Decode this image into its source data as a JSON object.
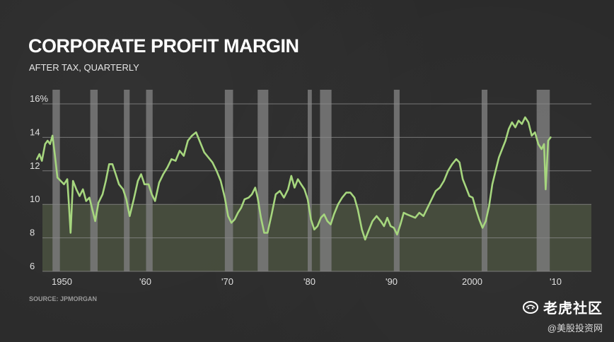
{
  "header": {
    "title": "CORPORATE PROFIT MARGIN",
    "subtitle": "AFTER TAX, QUARTERLY"
  },
  "footer": {
    "source": "SOURCE: JPMORGAN"
  },
  "watermark": {
    "brand": "老虎社区",
    "handle": "@美股投资网"
  },
  "colors": {
    "line": "#a6d67e",
    "recession": "#7a7a7a",
    "shaded_band": "#4a5140",
    "grid": "#8a8a8a",
    "background": "#2a2a2a"
  },
  "chart_data": {
    "type": "line",
    "title": "CORPORATE PROFIT MARGIN",
    "subtitle": "AFTER TAX, QUARTERLY",
    "xlabel": "",
    "ylabel": "",
    "xlim": [
      1947,
      2014
    ],
    "ylim": [
      6,
      16
    ],
    "yticks": [
      6,
      8,
      10,
      12,
      14,
      16
    ],
    "ytick_labels": [
      "6",
      "8",
      "10",
      "12",
      "14",
      "16%"
    ],
    "xticks": [
      1950,
      1960,
      1970,
      1980,
      1990,
      2000,
      2010
    ],
    "xtick_labels": [
      "1950",
      "'60",
      "'70",
      "'80",
      "'90",
      "2000",
      "'10"
    ],
    "grid": true,
    "shaded_band": [
      6,
      10
    ],
    "recessions": [
      [
        1948.9,
        1949.8
      ],
      [
        1953.5,
        1954.4
      ],
      [
        1957.6,
        1958.3
      ],
      [
        1960.3,
        1961.1
      ],
      [
        1969.9,
        1970.9
      ],
      [
        1973.9,
        1975.2
      ],
      [
        1980.0,
        1980.5
      ],
      [
        1981.5,
        1982.9
      ],
      [
        1990.5,
        1991.2
      ],
      [
        2001.2,
        2001.9
      ],
      [
        2007.9,
        2009.5
      ]
    ],
    "series": [
      {
        "values": [
          [
            1947.0,
            12.7
          ],
          [
            1947.3,
            13.0
          ],
          [
            1947.6,
            12.6
          ],
          [
            1948.0,
            13.6
          ],
          [
            1948.3,
            13.8
          ],
          [
            1948.6,
            13.6
          ],
          [
            1948.9,
            14.1
          ],
          [
            1949.2,
            12.9
          ],
          [
            1949.5,
            11.6
          ],
          [
            1949.9,
            11.4
          ],
          [
            1950.3,
            11.2
          ],
          [
            1950.7,
            11.5
          ],
          [
            1950.9,
            10.0
          ],
          [
            1951.1,
            8.3
          ],
          [
            1951.4,
            11.4
          ],
          [
            1951.8,
            10.9
          ],
          [
            1952.2,
            10.5
          ],
          [
            1952.6,
            10.9
          ],
          [
            1953.0,
            10.2
          ],
          [
            1953.4,
            10.4
          ],
          [
            1953.8,
            9.6
          ],
          [
            1954.1,
            9.0
          ],
          [
            1954.5,
            10.1
          ],
          [
            1955.0,
            10.6
          ],
          [
            1955.4,
            11.4
          ],
          [
            1955.8,
            12.4
          ],
          [
            1956.2,
            12.4
          ],
          [
            1956.6,
            11.8
          ],
          [
            1957.0,
            11.2
          ],
          [
            1957.5,
            10.9
          ],
          [
            1957.9,
            10.3
          ],
          [
            1958.3,
            9.3
          ],
          [
            1958.8,
            10.3
          ],
          [
            1959.3,
            11.4
          ],
          [
            1959.7,
            11.8
          ],
          [
            1960.1,
            11.2
          ],
          [
            1960.6,
            11.2
          ],
          [
            1961.0,
            10.6
          ],
          [
            1961.4,
            10.2
          ],
          [
            1961.9,
            11.3
          ],
          [
            1962.4,
            11.8
          ],
          [
            1962.9,
            12.2
          ],
          [
            1963.4,
            12.7
          ],
          [
            1963.9,
            12.6
          ],
          [
            1964.4,
            13.2
          ],
          [
            1964.9,
            12.9
          ],
          [
            1965.4,
            13.8
          ],
          [
            1965.9,
            14.1
          ],
          [
            1966.4,
            14.3
          ],
          [
            1966.9,
            13.7
          ],
          [
            1967.4,
            13.1
          ],
          [
            1967.9,
            12.8
          ],
          [
            1968.4,
            12.5
          ],
          [
            1968.9,
            12.0
          ],
          [
            1969.4,
            11.4
          ],
          [
            1969.9,
            10.4
          ],
          [
            1970.3,
            9.3
          ],
          [
            1970.7,
            8.9
          ],
          [
            1971.1,
            9.1
          ],
          [
            1971.5,
            9.5
          ],
          [
            1971.9,
            9.8
          ],
          [
            1972.3,
            10.3
          ],
          [
            1972.8,
            10.4
          ],
          [
            1973.2,
            10.6
          ],
          [
            1973.6,
            11.0
          ],
          [
            1973.9,
            10.4
          ],
          [
            1974.3,
            9.2
          ],
          [
            1974.7,
            8.3
          ],
          [
            1975.1,
            8.3
          ],
          [
            1975.6,
            9.4
          ],
          [
            1976.1,
            10.6
          ],
          [
            1976.6,
            10.8
          ],
          [
            1977.1,
            10.4
          ],
          [
            1977.6,
            10.9
          ],
          [
            1978.0,
            11.7
          ],
          [
            1978.4,
            11.0
          ],
          [
            1978.8,
            11.5
          ],
          [
            1979.2,
            11.2
          ],
          [
            1979.6,
            10.9
          ],
          [
            1980.0,
            10.3
          ],
          [
            1980.4,
            9.1
          ],
          [
            1980.8,
            8.5
          ],
          [
            1981.2,
            8.7
          ],
          [
            1981.6,
            9.2
          ],
          [
            1982.0,
            9.4
          ],
          [
            1982.4,
            9.0
          ],
          [
            1982.8,
            8.8
          ],
          [
            1983.2,
            9.4
          ],
          [
            1983.7,
            10.0
          ],
          [
            1984.2,
            10.4
          ],
          [
            1984.7,
            10.7
          ],
          [
            1985.2,
            10.7
          ],
          [
            1985.7,
            10.4
          ],
          [
            1986.1,
            9.7
          ],
          [
            1986.6,
            8.5
          ],
          [
            1987.0,
            7.9
          ],
          [
            1987.4,
            8.4
          ],
          [
            1987.9,
            9.0
          ],
          [
            1988.4,
            9.3
          ],
          [
            1988.9,
            9.0
          ],
          [
            1989.3,
            8.7
          ],
          [
            1989.7,
            9.2
          ],
          [
            1990.1,
            8.7
          ],
          [
            1990.5,
            8.6
          ],
          [
            1990.9,
            8.2
          ],
          [
            1991.3,
            8.8
          ],
          [
            1991.7,
            9.5
          ],
          [
            1992.1,
            9.4
          ],
          [
            1992.6,
            9.3
          ],
          [
            1993.1,
            9.2
          ],
          [
            1993.6,
            9.5
          ],
          [
            1994.1,
            9.3
          ],
          [
            1994.6,
            9.8
          ],
          [
            1995.1,
            10.3
          ],
          [
            1995.6,
            10.8
          ],
          [
            1996.1,
            11.0
          ],
          [
            1996.6,
            11.4
          ],
          [
            1997.1,
            12.0
          ],
          [
            1997.6,
            12.4
          ],
          [
            1998.1,
            12.7
          ],
          [
            1998.5,
            12.5
          ],
          [
            1998.9,
            11.5
          ],
          [
            1999.3,
            11.0
          ],
          [
            1999.7,
            10.5
          ],
          [
            2000.1,
            10.4
          ],
          [
            2000.5,
            9.7
          ],
          [
            2000.9,
            9.1
          ],
          [
            2001.3,
            8.6
          ],
          [
            2001.7,
            9.0
          ],
          [
            2002.1,
            9.9
          ],
          [
            2002.5,
            11.2
          ],
          [
            2002.9,
            12.0
          ],
          [
            2003.3,
            12.8
          ],
          [
            2003.7,
            13.3
          ],
          [
            2004.1,
            13.8
          ],
          [
            2004.5,
            14.5
          ],
          [
            2004.9,
            14.9
          ],
          [
            2005.3,
            14.6
          ],
          [
            2005.7,
            15.0
          ],
          [
            2006.1,
            14.8
          ],
          [
            2006.5,
            15.2
          ],
          [
            2006.9,
            14.9
          ],
          [
            2007.3,
            14.1
          ],
          [
            2007.7,
            14.3
          ],
          [
            2008.1,
            13.6
          ],
          [
            2008.5,
            13.3
          ],
          [
            2008.8,
            13.6
          ],
          [
            2009.0,
            10.9
          ],
          [
            2009.3,
            13.8
          ],
          [
            2009.6,
            14.0
          ]
        ]
      }
    ]
  }
}
